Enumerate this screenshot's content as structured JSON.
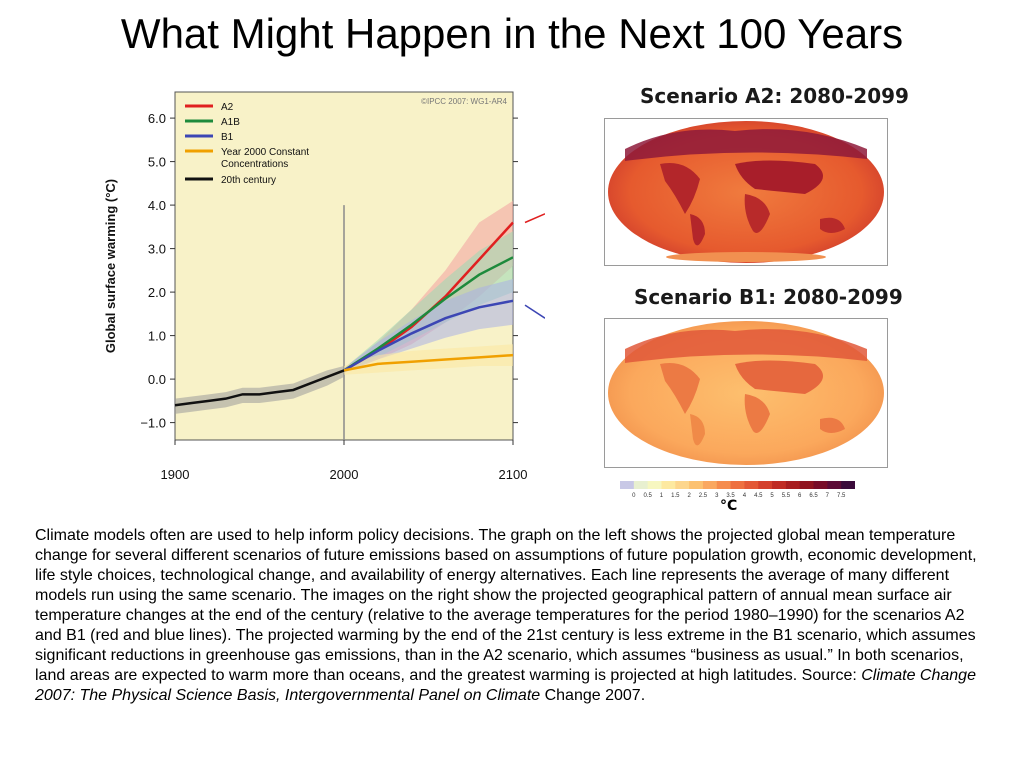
{
  "slide": {
    "title": "What Might Happen in the Next 100 Years"
  },
  "chart_data": {
    "type": "line",
    "ylabel": "Global surface warming (°C)",
    "xlabel": "",
    "watermark": "©IPCC 2007: WG1-AR4",
    "xlim": [
      1900,
      2100
    ],
    "ylim": [
      -1.4,
      6.6
    ],
    "x_ticks": [
      "1900",
      "2000",
      "2100"
    ],
    "y_ticks": [
      "6.0",
      "5.0",
      "4.0",
      "3.0",
      "2.0",
      "1.0",
      "0.0",
      "−1.0"
    ],
    "legend_position": "top-left",
    "series": [
      {
        "name": "A2",
        "color": "#e02020",
        "x": [
          2000,
          2020,
          2040,
          2060,
          2080,
          2100
        ],
        "values": [
          0.2,
          0.65,
          1.2,
          1.9,
          2.75,
          3.6
        ],
        "band": [
          [
            0.15,
            0.25
          ],
          [
            0.45,
            0.85
          ],
          [
            0.8,
            1.6
          ],
          [
            1.3,
            2.5
          ],
          [
            1.9,
            3.6
          ],
          [
            2.6,
            4.1
          ]
        ]
      },
      {
        "name": "A1B",
        "color": "#1e8a3c",
        "x": [
          2000,
          2020,
          2040,
          2060,
          2080,
          2100
        ],
        "values": [
          0.2,
          0.7,
          1.25,
          1.85,
          2.4,
          2.8
        ],
        "band": [
          [
            0.15,
            0.25
          ],
          [
            0.5,
            0.9
          ],
          [
            0.9,
            1.6
          ],
          [
            1.3,
            2.3
          ],
          [
            1.7,
            2.95
          ],
          [
            2.0,
            3.4
          ]
        ]
      },
      {
        "name": "B1",
        "color": "#3c46b4",
        "x": [
          2000,
          2020,
          2040,
          2060,
          2080,
          2100
        ],
        "values": [
          0.2,
          0.65,
          1.05,
          1.4,
          1.65,
          1.8
        ],
        "band": [
          [
            0.15,
            0.25
          ],
          [
            0.45,
            0.85
          ],
          [
            0.7,
            1.35
          ],
          [
            0.95,
            1.8
          ],
          [
            1.15,
            2.1
          ],
          [
            1.25,
            2.3
          ]
        ]
      },
      {
        "name": "Year 2000 Constant Concentrations",
        "color": "#f0a000",
        "x": [
          2000,
          2020,
          2040,
          2060,
          2080,
          2100
        ],
        "values": [
          0.2,
          0.35,
          0.4,
          0.45,
          0.5,
          0.55
        ],
        "band": [
          [
            0.1,
            0.3
          ],
          [
            0.15,
            0.55
          ],
          [
            0.2,
            0.65
          ],
          [
            0.25,
            0.7
          ],
          [
            0.3,
            0.75
          ],
          [
            0.3,
            0.8
          ]
        ]
      },
      {
        "name": "20th century",
        "color": "#111111",
        "x": [
          1900,
          1910,
          1920,
          1930,
          1940,
          1950,
          1960,
          1970,
          1980,
          1990,
          2000
        ],
        "values": [
          -0.6,
          -0.55,
          -0.5,
          -0.45,
          -0.35,
          -0.35,
          -0.3,
          -0.25,
          -0.1,
          0.05,
          0.2
        ],
        "band": [
          [
            -0.8,
            -0.45
          ],
          [
            -0.75,
            -0.4
          ],
          [
            -0.7,
            -0.35
          ],
          [
            -0.65,
            -0.3
          ],
          [
            -0.55,
            -0.2
          ],
          [
            -0.55,
            -0.2
          ],
          [
            -0.5,
            -0.15
          ],
          [
            -0.45,
            -0.1
          ],
          [
            -0.3,
            0.05
          ],
          [
            -0.15,
            0.2
          ],
          [
            0.05,
            0.3
          ]
        ]
      }
    ]
  },
  "maps": {
    "a2": {
      "title": "Scenario A2: 2080-2099"
    },
    "b1": {
      "title": "Scenario B1: 2080-2099"
    },
    "colorbar": {
      "ticks": [
        "0",
        "0.5",
        "1",
        "1.5",
        "2",
        "2.5",
        "3",
        "3.5",
        "4",
        "4.5",
        "5",
        "5.5",
        "6",
        "6.5",
        "7",
        "7.5"
      ],
      "colors": [
        "#c8c8e6",
        "#e8f0d0",
        "#f7f7c0",
        "#fde9a0",
        "#fdd68c",
        "#fcc170",
        "#faa860",
        "#f58c4e",
        "#ee7040",
        "#e35836",
        "#d4402c",
        "#c02c24",
        "#a81e20",
        "#901420",
        "#780c28",
        "#5c0a36",
        "#3a0a3a"
      ],
      "unit": "°C"
    }
  },
  "caption": {
    "text": "Climate models often are used to help inform policy decisions. The graph on the left shows the projected global mean temperature change for several different scenarios of future emissions based on assumptions of future population growth, economic development, life style choices, technological change, and availability of energy alternatives. Each line represents the average of many different models run using the same scenario. The images on the right show the projected geographical pattern of annual mean surface air temperature changes at the end of the century (relative to the average temperatures for the period 1980–1990) for the scenarios A2 and B1 (red and blue lines). The projected warming by the end of the 21st century is less extreme in the B1 scenario, which assumes significant reductions in greenhouse gas emissions, than in the A2 scenario, which assumes “business as usual.” In both scenarios, land areas are expected to warm more than oceans, and the greatest warming is projected at high latitudes. Source: ",
    "source_italic": "Climate Change 2007: The Physical Science Basis, Intergovernmental Panel on Climate",
    "source_tail": " Change 2007."
  }
}
